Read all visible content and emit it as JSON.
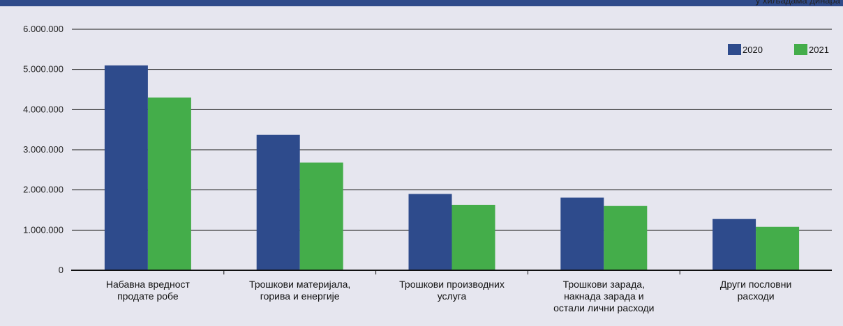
{
  "unit_text": "у хиљадама динара",
  "chart_data": {
    "type": "bar",
    "categories": [
      [
        "Набавна вредност",
        "продате робе"
      ],
      [
        "Трошкови материјала,",
        "горива и енергије"
      ],
      [
        "Трошкови производних",
        "услуга"
      ],
      [
        "Трошкови зарада,",
        "накнада зарада и",
        "остали лични расходи"
      ],
      [
        "Други пословни",
        "расходи"
      ]
    ],
    "series": [
      {
        "name": "2020",
        "color": "#2e4b8c",
        "values": [
          5100000,
          3370000,
          1900000,
          1810000,
          1280000
        ]
      },
      {
        "name": "2021",
        "color": "#44ad4a",
        "values": [
          4300000,
          2680000,
          1630000,
          1600000,
          1080000
        ]
      }
    ],
    "yticks": [
      "0",
      "1.000.000",
      "2.000.000",
      "3.000.000",
      "4.000.000",
      "5.000.000",
      "6.000.000"
    ],
    "ylim": [
      0,
      6000000
    ],
    "grid": true,
    "legend_position": "top-right"
  }
}
